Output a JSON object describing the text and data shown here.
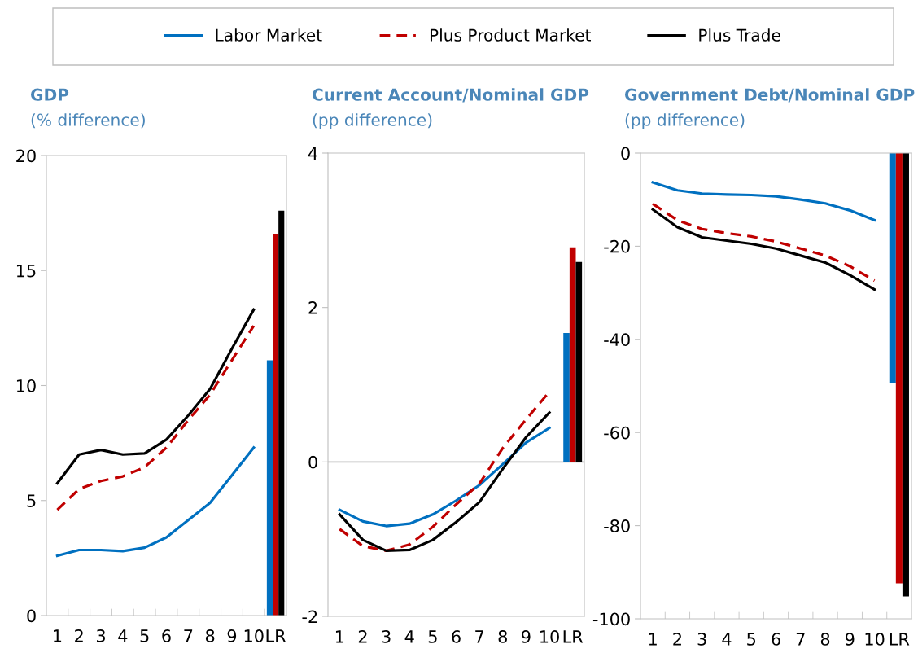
{
  "chart_data": [
    {
      "type": "line",
      "title": "GDP",
      "subtitle": "(% difference)",
      "legend": "top",
      "categories": [
        "1",
        "2",
        "3",
        "4",
        "5",
        "6",
        "7",
        "8",
        "9",
        "10",
        "LR"
      ],
      "ylim": [
        0,
        20
      ],
      "yticks": [
        0,
        5,
        10,
        15,
        20
      ],
      "series": [
        {
          "name": "Labor Market",
          "color": "#0070c0",
          "line_style": "solid",
          "values": [
            2.6,
            2.85,
            2.85,
            2.8,
            2.95,
            3.4,
            4.15,
            4.9,
            6.1,
            7.3,
            null
          ]
        },
        {
          "name": "Plus Product Market",
          "color": "#c00000",
          "line_style": "dashed",
          "values": [
            4.6,
            5.5,
            5.85,
            6.05,
            6.45,
            7.3,
            8.5,
            9.6,
            11.1,
            12.6,
            null
          ]
        },
        {
          "name": "Plus Trade",
          "color": "#000000",
          "line_style": "solid",
          "values": [
            5.75,
            7.0,
            7.2,
            7.0,
            7.05,
            7.65,
            8.7,
            9.85,
            11.6,
            13.3,
            null
          ]
        },
        {
          "type": "bar",
          "color": "#0070c0",
          "values": [
            null,
            null,
            null,
            null,
            null,
            null,
            null,
            null,
            null,
            null,
            11.1
          ]
        },
        {
          "type": "bar",
          "color": "#c00000",
          "values": [
            null,
            null,
            null,
            null,
            null,
            null,
            null,
            null,
            null,
            null,
            16.6
          ]
        },
        {
          "type": "bar",
          "color": "#000000",
          "values": [
            null,
            null,
            null,
            null,
            null,
            null,
            null,
            null,
            null,
            null,
            17.6
          ]
        }
      ]
    },
    {
      "type": "line",
      "title": "Current Account/Nominal GDP",
      "subtitle": "(pp difference)",
      "categories": [
        "1",
        "2",
        "3",
        "4",
        "5",
        "6",
        "7",
        "8",
        "9",
        "10",
        "LR"
      ],
      "ylim": [
        -2,
        4
      ],
      "yticks": [
        -2,
        0,
        2,
        4
      ],
      "ref_lines": [
        {
          "axis": "y",
          "value": 0,
          "color": "#bfbfbf"
        }
      ],
      "series": [
        {
          "color": "#0070c0",
          "line_style": "solid",
          "values": [
            -0.62,
            -0.77,
            -0.83,
            -0.8,
            -0.68,
            -0.5,
            -0.3,
            -0.03,
            0.25,
            0.44,
            null
          ]
        },
        {
          "color": "#c00000",
          "line_style": "dashed",
          "values": [
            -0.87,
            -1.09,
            -1.15,
            -1.07,
            -0.84,
            -0.55,
            -0.28,
            0.18,
            0.55,
            0.91,
            null
          ]
        },
        {
          "color": "#000000",
          "line_style": "solid",
          "values": [
            -0.68,
            -1.01,
            -1.15,
            -1.14,
            -1.01,
            -0.78,
            -0.52,
            -0.09,
            0.32,
            0.64,
            null
          ]
        },
        {
          "type": "bar",
          "color": "#0070c0",
          "values": [
            null,
            null,
            null,
            null,
            null,
            null,
            null,
            null,
            null,
            null,
            1.67
          ]
        },
        {
          "type": "bar",
          "color": "#c00000",
          "values": [
            null,
            null,
            null,
            null,
            null,
            null,
            null,
            null,
            null,
            null,
            2.78
          ]
        },
        {
          "type": "bar",
          "color": "#000000",
          "values": [
            null,
            null,
            null,
            null,
            null,
            null,
            null,
            null,
            null,
            null,
            2.59
          ]
        }
      ]
    },
    {
      "type": "line",
      "title": "Government Debt/Nominal GDP",
      "subtitle": "(pp difference)",
      "categories": [
        "1",
        "2",
        "3",
        "4",
        "5",
        "6",
        "7",
        "8",
        "9",
        "10",
        "LR"
      ],
      "ylim": [
        -100,
        0
      ],
      "yticks": [
        -100,
        -80,
        -60,
        -40,
        -20,
        0
      ],
      "series": [
        {
          "color": "#0070c0",
          "line_style": "solid",
          "values": [
            -6.3,
            -8.0,
            -8.7,
            -8.9,
            -9.0,
            -9.3,
            -10.0,
            -10.8,
            -12.3,
            -14.4,
            null
          ]
        },
        {
          "color": "#c00000",
          "line_style": "dashed",
          "values": [
            -10.9,
            -14.4,
            -16.3,
            -17.2,
            -17.9,
            -19.0,
            -20.5,
            -22.0,
            -24.3,
            -27.4,
            null
          ]
        },
        {
          "color": "#000000",
          "line_style": "solid",
          "values": [
            -12.1,
            -15.9,
            -18.1,
            -18.8,
            -19.5,
            -20.5,
            -22.0,
            -23.5,
            -26.2,
            -29.3,
            null
          ]
        },
        {
          "type": "bar",
          "color": "#0070c0",
          "values": [
            null,
            null,
            null,
            null,
            null,
            null,
            null,
            null,
            null,
            null,
            -49.3
          ]
        },
        {
          "type": "bar",
          "color": "#c00000",
          "values": [
            null,
            null,
            null,
            null,
            null,
            null,
            null,
            null,
            null,
            null,
            -92.4
          ]
        },
        {
          "type": "bar",
          "color": "#000000",
          "values": [
            null,
            null,
            null,
            null,
            null,
            null,
            null,
            null,
            null,
            null,
            -95.2
          ]
        }
      ]
    }
  ]
}
